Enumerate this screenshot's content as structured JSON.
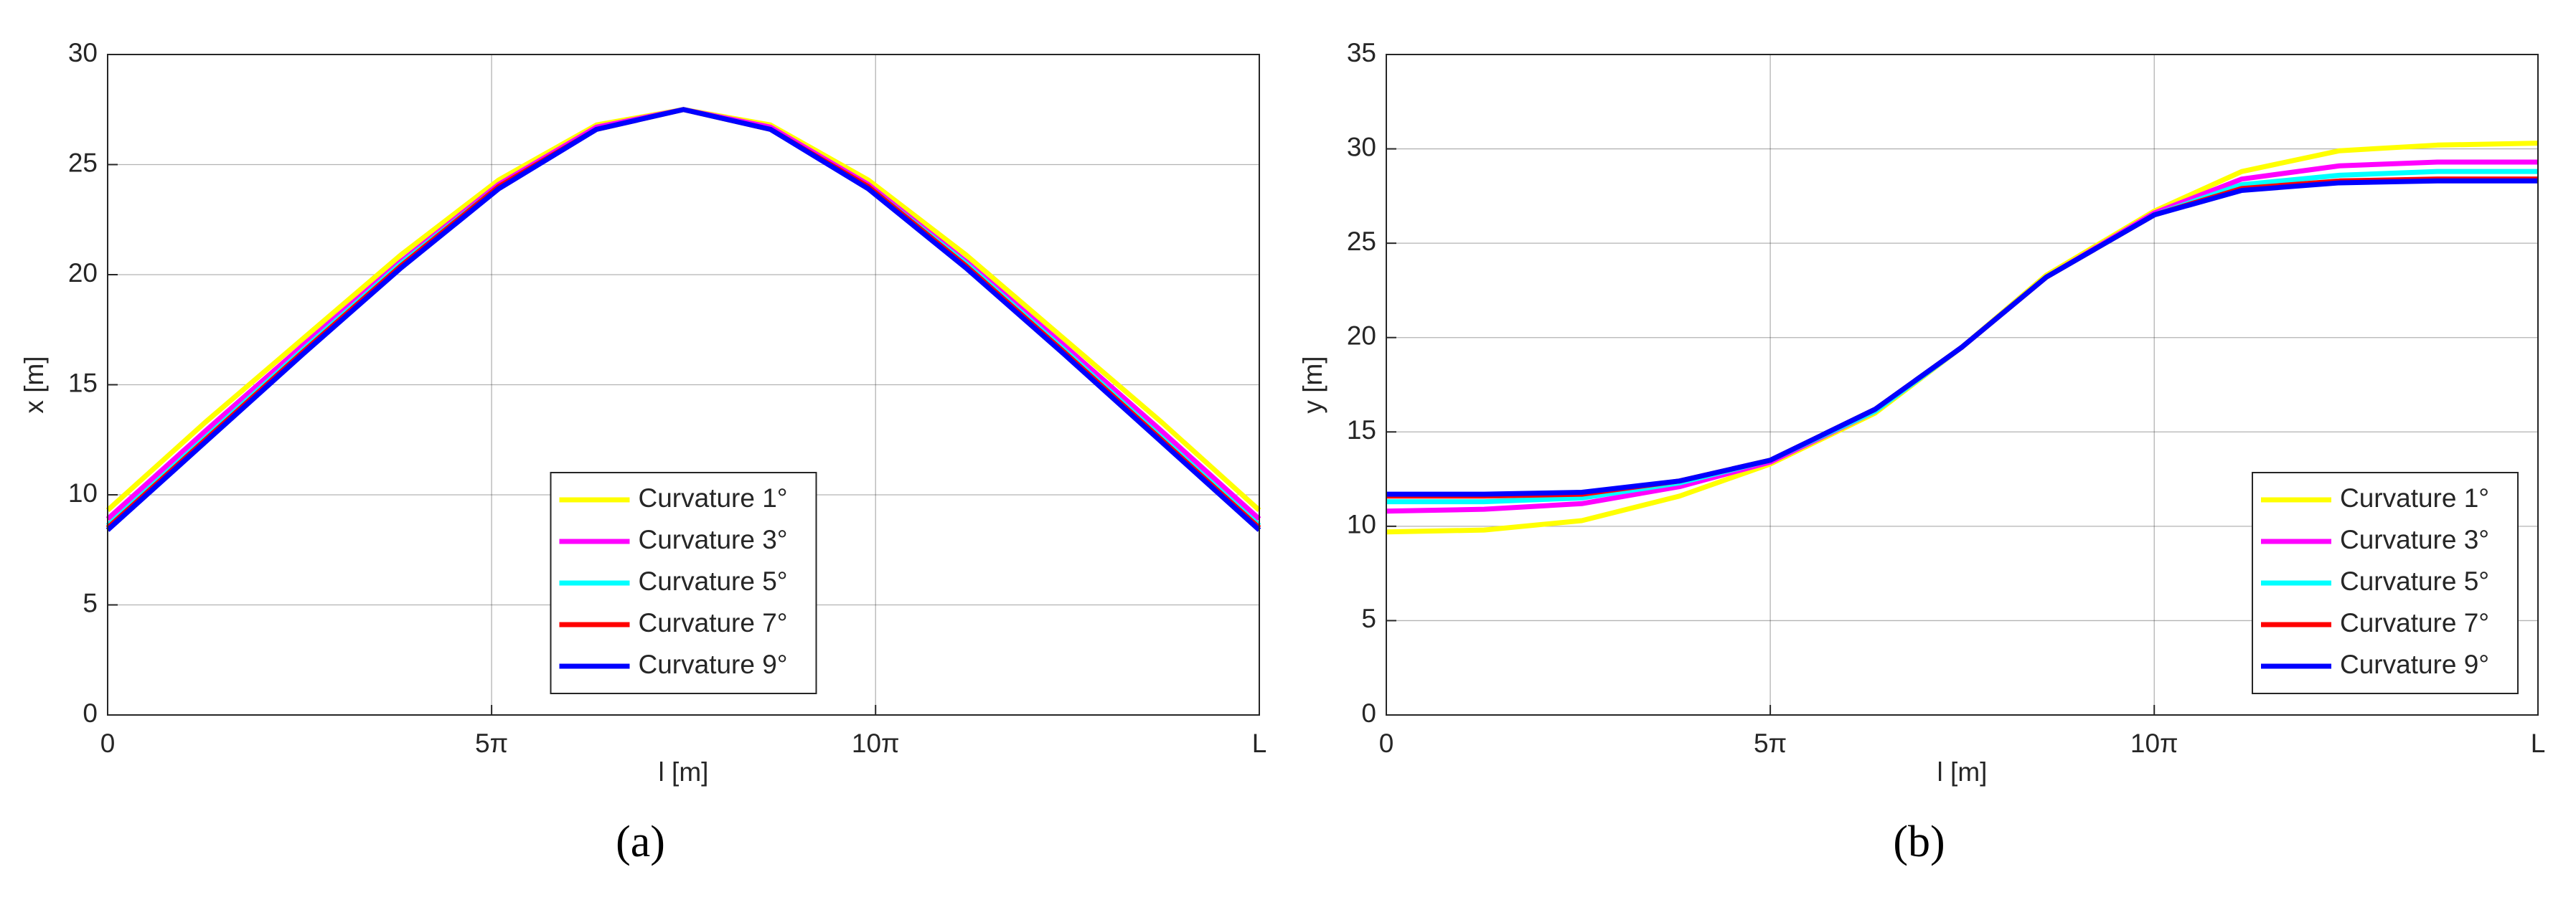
{
  "chart_data": [
    {
      "type": "line",
      "label": "(a)",
      "xlabel": "l [m]",
      "ylabel": "x [m]",
      "x": [
        0,
        4,
        8,
        12,
        16,
        20,
        23.56,
        27.12,
        31.12,
        35.12,
        39.12,
        43.12,
        47.12
      ],
      "xlim": [
        0,
        47.12
      ],
      "xticks": [
        0,
        {
          "value": 15.71,
          "label": "5π"
        },
        {
          "value": 31.42,
          "label": "10π"
        },
        {
          "value": 47.12,
          "label": "L"
        }
      ],
      "ylim": [
        0,
        30
      ],
      "yticks": [
        0,
        5,
        10,
        15,
        20,
        25,
        30
      ],
      "grid": true,
      "legend": "lower center",
      "series": [
        {
          "name": "Curvature 1°",
          "color": "#ffff00",
          "values": [
            9.3,
            13.3,
            17.1,
            20.9,
            24.3,
            26.8,
            27.5,
            26.8,
            24.3,
            20.9,
            17.1,
            13.3,
            9.3
          ]
        },
        {
          "name": "Curvature 3°",
          "color": "#ff00ff",
          "values": [
            8.9,
            12.9,
            16.8,
            20.6,
            24.1,
            26.7,
            27.5,
            26.7,
            24.1,
            20.6,
            16.8,
            12.9,
            8.9
          ]
        },
        {
          "name": "Curvature 5°",
          "color": "#00ffff",
          "values": [
            8.6,
            12.6,
            16.6,
            20.5,
            24.0,
            26.6,
            27.5,
            26.6,
            24.0,
            20.5,
            16.6,
            12.6,
            8.6
          ]
        },
        {
          "name": "Curvature 7°",
          "color": "#ff0000",
          "values": [
            8.5,
            12.5,
            16.5,
            20.4,
            24.0,
            26.6,
            27.5,
            26.6,
            24.0,
            20.4,
            16.5,
            12.5,
            8.5
          ]
        },
        {
          "name": "Curvature 9°",
          "color": "#0000ff",
          "values": [
            8.4,
            12.4,
            16.4,
            20.3,
            23.9,
            26.6,
            27.5,
            26.6,
            23.9,
            20.3,
            16.4,
            12.4,
            8.4
          ]
        }
      ]
    },
    {
      "type": "line",
      "label": "(b)",
      "xlabel": "l [m]",
      "ylabel": "y [m]",
      "x": [
        0,
        4,
        8,
        12,
        15.71,
        20,
        23.56,
        27,
        31.42,
        35,
        39,
        43,
        47.12
      ],
      "xlim": [
        0,
        47.12
      ],
      "xticks": [
        0,
        {
          "value": 15.71,
          "label": "5π"
        },
        {
          "value": 31.42,
          "label": "10π"
        },
        {
          "value": 47.12,
          "label": "L"
        }
      ],
      "ylim": [
        0,
        35
      ],
      "yticks": [
        0,
        5,
        10,
        15,
        20,
        25,
        30,
        35
      ],
      "grid": true,
      "legend": "lower right",
      "series": [
        {
          "name": "Curvature 1°",
          "color": "#ffff00",
          "values": [
            9.7,
            9.8,
            10.3,
            11.6,
            13.3,
            16.0,
            19.5,
            23.3,
            26.7,
            28.8,
            29.9,
            30.2,
            30.3
          ]
        },
        {
          "name": "Curvature 3°",
          "color": "#ff00ff",
          "values": [
            10.8,
            10.9,
            11.2,
            12.1,
            13.4,
            16.1,
            19.5,
            23.2,
            26.6,
            28.4,
            29.1,
            29.3,
            29.3
          ]
        },
        {
          "name": "Curvature 5°",
          "color": "#00ffff",
          "values": [
            11.3,
            11.3,
            11.5,
            12.3,
            13.5,
            16.1,
            19.5,
            23.2,
            26.5,
            28.1,
            28.6,
            28.8,
            28.8
          ]
        },
        {
          "name": "Curvature 7°",
          "color": "#ff0000",
          "values": [
            11.6,
            11.6,
            11.7,
            12.4,
            13.5,
            16.2,
            19.5,
            23.2,
            26.5,
            27.9,
            28.3,
            28.4,
            28.4
          ]
        },
        {
          "name": "Curvature 9°",
          "color": "#0000ff",
          "values": [
            11.7,
            11.7,
            11.8,
            12.4,
            13.5,
            16.2,
            19.5,
            23.2,
            26.5,
            27.8,
            28.2,
            28.3,
            28.3
          ]
        }
      ]
    }
  ]
}
